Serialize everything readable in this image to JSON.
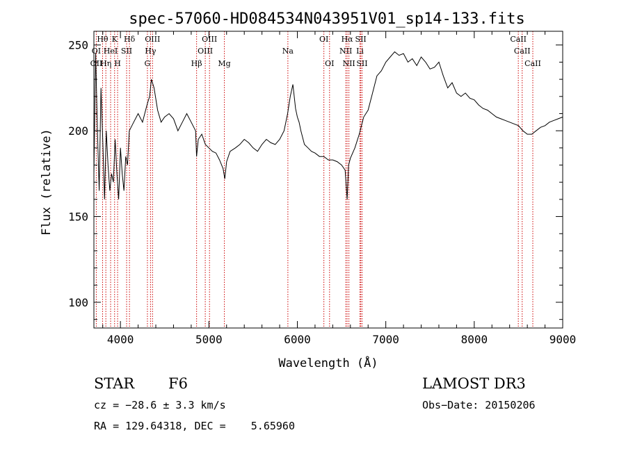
{
  "chart_data": {
    "type": "line",
    "title": "spec-57060-HD084534N043951V01_sp14-133.fits",
    "xlabel": "Wavelength (Å)",
    "ylabel": "Flux (relative)",
    "xlim": [
      3700,
      9000
    ],
    "ylim": [
      85,
      258
    ],
    "xticks": [
      4000,
      5000,
      6000,
      7000,
      8000,
      9000
    ],
    "yticks": [
      100,
      150,
      200,
      250
    ],
    "grid": false,
    "series": [
      {
        "color": "#000000",
        "x": [
          3700,
          3720,
          3740,
          3760,
          3780,
          3800,
          3820,
          3840,
          3860,
          3880,
          3900,
          3920,
          3940,
          3960,
          3980,
          4000,
          4020,
          4040,
          4060,
          4080,
          4100,
          4150,
          4200,
          4250,
          4300,
          4330,
          4350,
          4380,
          4420,
          4460,
          4500,
          4550,
          4600,
          4650,
          4700,
          4750,
          4800,
          4850,
          4861,
          4880,
          4920,
          4960,
          5000,
          5040,
          5080,
          5120,
          5160,
          5180,
          5200,
          5240,
          5300,
          5350,
          5400,
          5450,
          5500,
          5550,
          5600,
          5650,
          5700,
          5750,
          5800,
          5850,
          5890,
          5920,
          5950,
          5980,
          6000,
          6020,
          6040,
          6080,
          6120,
          6160,
          6200,
          6250,
          6300,
          6350,
          6400,
          6450,
          6500,
          6540,
          6563,
          6580,
          6600,
          6650,
          6700,
          6750,
          6800,
          6850,
          6900,
          6950,
          7000,
          7050,
          7100,
          7150,
          7200,
          7250,
          7300,
          7350,
          7400,
          7450,
          7500,
          7550,
          7600,
          7650,
          7700,
          7750,
          7800,
          7850,
          7900,
          7950,
          8000,
          8050,
          8100,
          8150,
          8200,
          8250,
          8300,
          8350,
          8400,
          8450,
          8500,
          8550,
          8600,
          8650,
          8700,
          8750,
          8800,
          8850,
          8900,
          8950,
          9000
        ],
        "y": [
          175,
          245,
          200,
          165,
          225,
          195,
          160,
          200,
          180,
          165,
          175,
          170,
          195,
          175,
          160,
          190,
          175,
          165,
          185,
          180,
          200,
          205,
          210,
          205,
          215,
          220,
          230,
          225,
          212,
          205,
          208,
          210,
          207,
          200,
          205,
          210,
          205,
          200,
          185,
          195,
          198,
          192,
          190,
          188,
          187,
          183,
          178,
          172,
          182,
          188,
          190,
          192,
          195,
          193,
          190,
          188,
          192,
          195,
          193,
          192,
          195,
          200,
          210,
          220,
          227,
          213,
          208,
          205,
          200,
          192,
          190,
          188,
          187,
          185,
          185,
          183,
          183,
          182,
          180,
          177,
          160,
          180,
          184,
          190,
          198,
          208,
          212,
          222,
          232,
          235,
          240,
          243,
          246,
          244,
          245,
          240,
          242,
          238,
          243,
          240,
          236,
          237,
          240,
          232,
          225,
          228,
          222,
          220,
          222,
          219,
          218,
          215,
          213,
          212,
          210,
          208,
          207,
          206,
          205,
          204,
          203,
          200,
          198,
          198,
          200,
          202,
          203,
          205,
          206,
          207,
          208
        ]
      }
    ],
    "spectral_lines": {
      "top": [
        {
          "label": "Hθ",
          "x": 3798
        },
        {
          "label": "K",
          "x": 3934
        },
        {
          "label": "Hδ",
          "x": 4102
        },
        {
          "label": "OIII",
          "x": 4363
        },
        {
          "label": "OIII",
          "x": 5007
        },
        {
          "label": "OI",
          "x": 6300
        },
        {
          "label": "Hα",
          "x": 6563
        },
        {
          "label": "SII",
          "x": 6717
        },
        {
          "label": "CaII",
          "x": 8498
        }
      ],
      "middle": [
        {
          "label": "OI",
          "x": 3727
        },
        {
          "label": "HeI",
          "x": 3889
        },
        {
          "label": "SII",
          "x": 4070
        },
        {
          "label": "Hγ",
          "x": 4340
        },
        {
          "label": "OIII",
          "x": 4959
        },
        {
          "label": "Na",
          "x": 5893
        },
        {
          "label": "NII",
          "x": 6548
        },
        {
          "label": "Li",
          "x": 6708
        },
        {
          "label": "CaII",
          "x": 8542
        }
      ],
      "bottom": [
        {
          "label": "OII",
          "x": 3727
        },
        {
          "label": "Hη",
          "x": 3835
        },
        {
          "label": "H",
          "x": 3968
        },
        {
          "label": "G",
          "x": 4305
        },
        {
          "label": "Hβ",
          "x": 4861
        },
        {
          "label": "Mg",
          "x": 5175
        },
        {
          "label": "OI",
          "x": 6364
        },
        {
          "label": "NII",
          "x": 6583
        },
        {
          "label": "SII",
          "x": 6731
        },
        {
          "label": "CaII",
          "x": 8662
        }
      ]
    }
  },
  "info": {
    "object_class": "STAR",
    "subclass": "F6",
    "survey": "LAMOST DR3",
    "cz": "cz = −28.6 ± 3.3 km/s",
    "obs_date": "Obs−Date: 20150206",
    "coords": "RA = 129.64318, DEC =    5.65960"
  },
  "colors": {
    "spectrum": "#000000",
    "line_markers": "#cc0000"
  }
}
